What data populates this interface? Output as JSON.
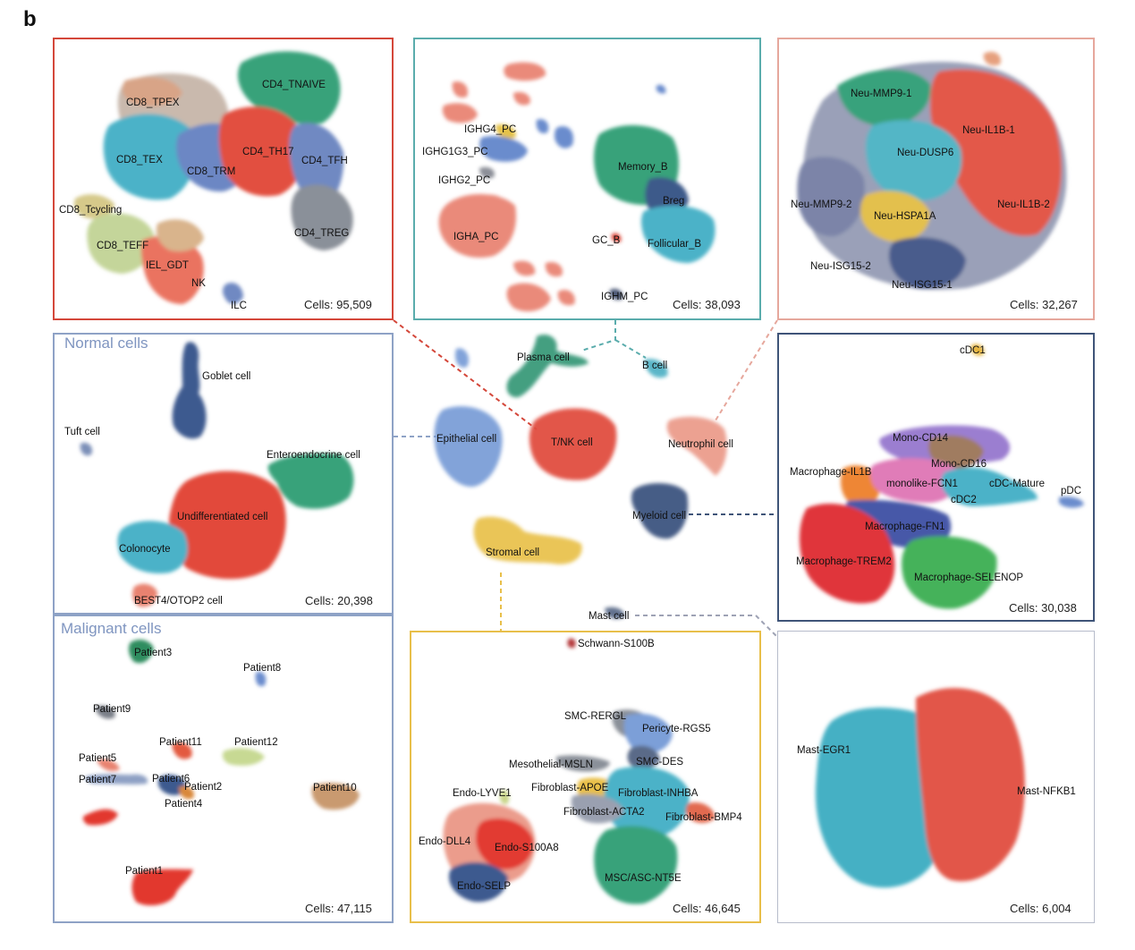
{
  "figure_label": "b",
  "colors": {
    "tnk": "#d4473a",
    "bcell": "#49a4a6",
    "neutrophil": "#e9a397",
    "normal": "#8ea2c6",
    "malignant": "#8ea2c6",
    "myeloid": "#3f5478",
    "stromal": "#e8bf4a",
    "mast": "#9ea2b4"
  },
  "center": {
    "labels": [
      "Plasma cell",
      "B cell",
      "Epithelial cell",
      "T/NK cell",
      "Neutrophil cell",
      "Myeloid cell",
      "Stromal cell",
      "Mast cell"
    ]
  },
  "panels": {
    "tnk": {
      "count": "Cells: 95,509",
      "labels": [
        "CD4_TNAIVE",
        "CD8_TPEX",
        "CD4_TH17",
        "CD8_TEX",
        "CD8_TRM",
        "CD4_TFH",
        "CD8_Tcycling",
        "CD4_TREG",
        "CD8_TEFF",
        "IEL_GDT",
        "NK",
        "ILC"
      ]
    },
    "bcell": {
      "count": "Cells: 38,093",
      "labels": [
        "IGHG4_PC",
        "IGHG1G3_PC",
        "Memory_B",
        "IGHG2_PC",
        "Breg",
        "IGHA_PC",
        "GC_B",
        "Follicular_B",
        "IGHM_PC"
      ]
    },
    "neutrophil": {
      "count": "Cells: 32,267",
      "labels": [
        "Neu-MMP9-1",
        "Neu-IL1B-1",
        "Neu-DUSP6",
        "Neu-MMP9-2",
        "Neu-HSPA1A",
        "Neu-IL1B-2",
        "Neu-ISG15-2",
        "Neu-ISG15-1"
      ]
    },
    "normal": {
      "title": "Normal cells",
      "count": "Cells: 20,398",
      "labels": [
        "Goblet cell",
        "Tuft cell",
        "Enteroendocrine cell",
        "Undifferentiated cell",
        "Colonocyte",
        "BEST4/OTOP2 cell"
      ]
    },
    "malignant": {
      "title": "Malignant cells",
      "count": "Cells: 47,115",
      "labels": [
        "Patient3",
        "Patient8",
        "Patient9",
        "Patient11",
        "Patient12",
        "Patient5",
        "Patient7",
        "Patient6",
        "Patient2",
        "Patient4",
        "Patient10",
        "Patient1"
      ]
    },
    "myeloid": {
      "count": "Cells: 30,038",
      "labels": [
        "cDC1",
        "Mono-CD14",
        "Mono-CD16",
        "Macrophage-IL1B",
        "monolike-FCN1",
        "cDC-Mature",
        "cDC2",
        "pDC",
        "Macrophage-FN1",
        "Macrophage-TREM2",
        "Macrophage-SELENOP"
      ]
    },
    "stromal": {
      "count": "Cells: 46,645",
      "labels": [
        "Schwann-S100B",
        "SMC-RERGL",
        "Pericyte-RGS5",
        "Mesothelial-MSLN",
        "SMC-DES",
        "Endo-LYVE1",
        "Fibroblast-APOE",
        "Fibroblast-INHBA",
        "Fibroblast-ACTA2",
        "Fibroblast-BMP4",
        "Endo-DLL4",
        "Endo-S100A8",
        "MSC/ASC-NT5E",
        "Endo-SELP"
      ]
    },
    "mast": {
      "count": "Cells: 6,004",
      "labels": [
        "Mast-EGR1",
        "Mast-NFKB1"
      ]
    }
  }
}
